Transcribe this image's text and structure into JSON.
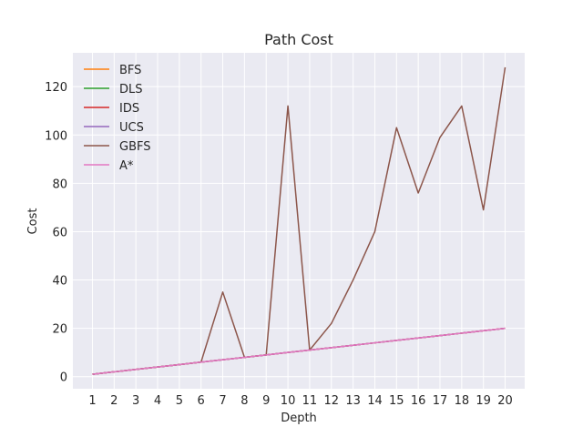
{
  "chart_data": {
    "type": "line",
    "title": "Path Cost",
    "xlabel": "Depth",
    "ylabel": "Cost",
    "x": [
      1,
      2,
      3,
      4,
      5,
      6,
      7,
      8,
      9,
      10,
      11,
      12,
      13,
      14,
      15,
      16,
      17,
      18,
      19,
      20
    ],
    "xlim": [
      0.1,
      20.9
    ],
    "ylim": [
      -5,
      134
    ],
    "yticks": [
      0,
      20,
      40,
      60,
      80,
      100,
      120
    ],
    "grid": true,
    "legend_position": "top-left",
    "series": [
      {
        "name": "BFS",
        "color": "#ff7f0e",
        "values": [
          1,
          2,
          3,
          4,
          5,
          6,
          7,
          8,
          9,
          10,
          11,
          12,
          13,
          14,
          15,
          16,
          17,
          18,
          19,
          20
        ]
      },
      {
        "name": "DLS",
        "color": "#2ca02c",
        "values": [
          1,
          2,
          3,
          4,
          5,
          6,
          7,
          8,
          9,
          10,
          11,
          12,
          13,
          14,
          15,
          16,
          17,
          18,
          19,
          20
        ]
      },
      {
        "name": "IDS",
        "color": "#d62728",
        "values": [
          1,
          2,
          3,
          4,
          5,
          6,
          7,
          8,
          9,
          10,
          11,
          12,
          13,
          14,
          15,
          16,
          17,
          18,
          19,
          20
        ]
      },
      {
        "name": "UCS",
        "color": "#9467bd",
        "values": [
          1,
          2,
          3,
          4,
          5,
          6,
          7,
          8,
          9,
          10,
          11,
          12,
          13,
          14,
          15,
          16,
          17,
          18,
          19,
          20
        ]
      },
      {
        "name": "GBFS",
        "color": "#8c564b",
        "values": [
          1,
          2,
          3,
          4,
          5,
          6,
          35,
          8,
          9,
          112,
          11,
          22,
          40,
          60,
          103,
          76,
          99,
          112,
          69,
          128
        ]
      },
      {
        "name": "A*",
        "color": "#e377c2",
        "values": [
          1,
          2,
          3,
          4,
          5,
          6,
          7,
          8,
          9,
          10,
          11,
          12,
          13,
          14,
          15,
          16,
          17,
          18,
          19,
          20
        ]
      }
    ]
  }
}
